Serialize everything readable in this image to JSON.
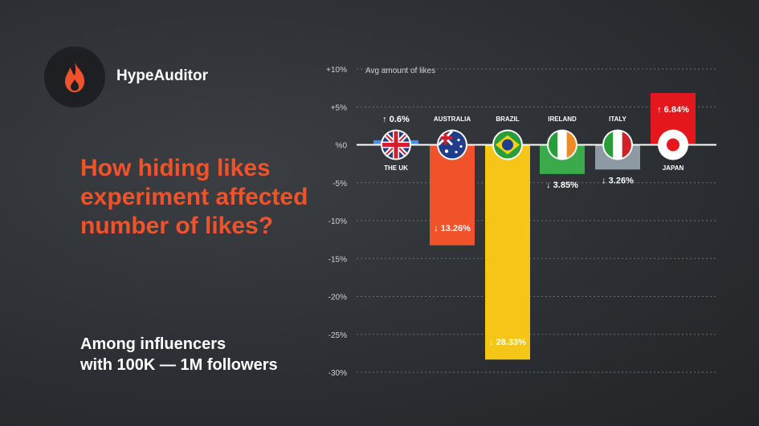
{
  "brand": {
    "name": "HypeAuditor",
    "logo_icon": "flame-icon",
    "accent": "#f0532a"
  },
  "headline": "How hiding likes experiment affected number of likes?",
  "subtitle_line1": "Among influencers",
  "subtitle_line2": "with 100K — 1M followers",
  "chart_data": {
    "type": "bar",
    "title": "Avg amount of likes",
    "ylim": [
      -30,
      10
    ],
    "yticks": [
      "+10%",
      "+5%",
      "%0",
      "-5%",
      "-10%",
      "-15%",
      "-20%",
      "-25%",
      "-30%"
    ],
    "grid": true,
    "categories": [
      "THE UK",
      "AUSTRALIA",
      "BRAZIL",
      "IRELAND",
      "ITALY",
      "JAPAN"
    ],
    "values": [
      0.6,
      -13.26,
      -28.33,
      -3.85,
      -3.26,
      6.84
    ],
    "labels": [
      "↑ 0.6%",
      "↓ 13.26%",
      "↓ 28.33%",
      "↓ 3.85%",
      "↓ 3.26%",
      "↑ 6.84%"
    ],
    "colors": [
      "#4a90e2",
      "#f0532a",
      "#f5c518",
      "#3aaa4a",
      "#8e9aa3",
      "#e3171c"
    ],
    "flags": [
      "uk-flag-icon",
      "australia-flag-icon",
      "brazil-flag-icon",
      "ireland-flag-icon",
      "italy-flag-icon",
      "japan-flag-icon"
    ]
  }
}
